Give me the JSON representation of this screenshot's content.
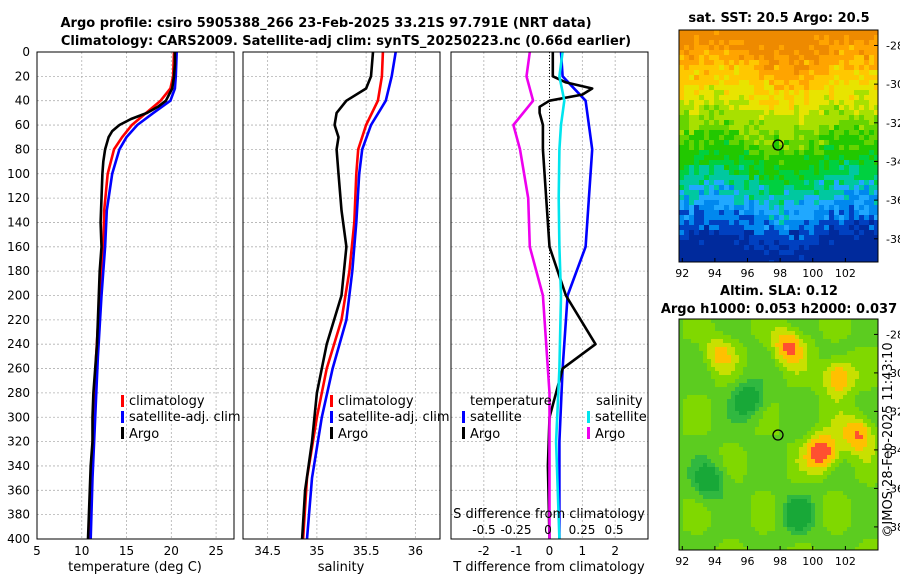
{
  "title_line1": "Argo profile: csiro 5905388_266 23-Feb-2025 33.21S 97.791E (NRT data)",
  "title_line2": "Climatology: CARS2009. Satellite-adj clim: synTS_20250223.nc (0.66d earlier)",
  "credit": "©IMOS 28-Feb-2025 11:43:10",
  "colors": {
    "climatology": "#ff0000",
    "satellite": "#0000ff",
    "argo": "#000000",
    "cyan": "#00e5ee",
    "magenta": "#ee00ee"
  },
  "chart_data": [
    {
      "type": "line",
      "name": "temperature",
      "xlabel": "temperature (deg C)",
      "xlim": [
        5,
        27
      ],
      "xticks": [
        5,
        10,
        15,
        20,
        25
      ],
      "ylim": [
        0,
        400
      ],
      "yticks": [
        0,
        20,
        40,
        60,
        80,
        100,
        120,
        140,
        160,
        180,
        200,
        220,
        240,
        260,
        280,
        300,
        320,
        340,
        360,
        380,
        400
      ],
      "legend": [
        "climatology",
        "satellite-adj. clim",
        "Argo"
      ],
      "series": [
        {
          "name": "climatology",
          "color": "#ff0000",
          "depth": [
            0,
            20,
            30,
            40,
            50,
            60,
            70,
            80,
            100,
            130,
            160,
            200,
            250,
            300,
            350,
            400
          ],
          "values": [
            20.3,
            20.2,
            19.9,
            18.8,
            17.2,
            15.6,
            14.5,
            13.6,
            12.9,
            12.5,
            12.4,
            12.0,
            11.6,
            11.3,
            11.1,
            10.9
          ]
        },
        {
          "name": "satellite-adj. clim",
          "color": "#0000ff",
          "depth": [
            0,
            20,
            30,
            40,
            50,
            60,
            70,
            80,
            100,
            130,
            160,
            200,
            250,
            300,
            350,
            400
          ],
          "values": [
            20.6,
            20.5,
            20.4,
            19.9,
            18.0,
            16.2,
            15.0,
            14.2,
            13.4,
            12.8,
            12.6,
            12.2,
            11.8,
            11.5,
            11.2,
            11.0
          ]
        },
        {
          "name": "Argo",
          "color": "#000000",
          "depth": [
            0,
            10,
            20,
            30,
            40,
            45,
            50,
            55,
            60,
            65,
            70,
            80,
            90,
            100,
            120,
            140,
            160,
            180,
            200,
            220,
            240,
            260,
            280,
            300,
            320,
            340,
            360,
            380,
            400
          ],
          "values": [
            20.4,
            20.4,
            20.3,
            20.1,
            19.4,
            18.5,
            17.3,
            15.5,
            14.2,
            13.4,
            13.0,
            12.6,
            12.4,
            12.3,
            12.2,
            12.1,
            12.2,
            12.0,
            11.9,
            11.8,
            11.7,
            11.5,
            11.3,
            11.2,
            11.2,
            11.0,
            10.9,
            10.8,
            10.7
          ]
        }
      ]
    },
    {
      "type": "line",
      "name": "salinity",
      "xlabel": "salinity",
      "xlim": [
        34.25,
        36.25
      ],
      "xticks": [
        34.5,
        35,
        35.5,
        36
      ],
      "ylim": [
        0,
        400
      ],
      "legend": [
        "climatology",
        "satellite-adj. clim",
        "Argo"
      ],
      "series": [
        {
          "name": "climatology",
          "color": "#ff0000",
          "depth": [
            0,
            20,
            40,
            60,
            80,
            100,
            140,
            180,
            220,
            260,
            300,
            350,
            400
          ],
          "values": [
            35.67,
            35.66,
            35.62,
            35.5,
            35.42,
            35.4,
            35.38,
            35.33,
            35.25,
            35.1,
            35.0,
            34.9,
            34.86
          ]
        },
        {
          "name": "satellite-adj. clim",
          "color": "#0000ff",
          "depth": [
            0,
            20,
            40,
            60,
            80,
            100,
            140,
            180,
            220,
            260,
            300,
            350,
            400
          ],
          "values": [
            35.8,
            35.76,
            35.7,
            35.55,
            35.46,
            35.43,
            35.4,
            35.36,
            35.3,
            35.16,
            35.05,
            34.95,
            34.9
          ]
        },
        {
          "name": "Argo",
          "color": "#000000",
          "depth": [
            0,
            20,
            30,
            40,
            50,
            60,
            70,
            80,
            100,
            130,
            160,
            200,
            240,
            280,
            320,
            360,
            400
          ],
          "values": [
            35.57,
            35.55,
            35.5,
            35.3,
            35.2,
            35.18,
            35.22,
            35.2,
            35.22,
            35.25,
            35.3,
            35.25,
            35.1,
            35.0,
            34.95,
            34.88,
            34.85
          ]
        }
      ]
    },
    {
      "type": "line",
      "name": "difference",
      "xlabel": "T difference from climatology",
      "xlim": [
        -3,
        3
      ],
      "xticks": [
        -2,
        -1,
        0,
        1,
        2
      ],
      "top_label": "S difference from climatology",
      "top_ticks": [
        "-0.5",
        "-0.25",
        "0",
        "0.25",
        "0.5"
      ],
      "ylim": [
        0,
        400
      ],
      "legend_left_title": "temperature",
      "legend_right_title": "salinity",
      "legend": [
        "satellite",
        "Argo",
        "satellite",
        "Argo"
      ],
      "series": [
        {
          "name": "temperature satellite",
          "color": "#0000ff",
          "depth": [
            0,
            20,
            40,
            60,
            80,
            120,
            160,
            200,
            260,
            320,
            400
          ],
          "values": [
            0.35,
            0.4,
            1.1,
            1.2,
            1.3,
            1.2,
            1.1,
            0.55,
            0.4,
            0.3,
            0.3
          ]
        },
        {
          "name": "temperature Argo",
          "color": "#000000",
          "depth": [
            0,
            20,
            25,
            30,
            35,
            40,
            45,
            50,
            60,
            80,
            120,
            160,
            200,
            240,
            260,
            300,
            340,
            400
          ],
          "values": [
            0.1,
            0.1,
            0.5,
            1.3,
            1.0,
            0.0,
            -0.3,
            -0.3,
            -0.2,
            -0.2,
            -0.1,
            0.0,
            0.5,
            1.4,
            0.4,
            0.0,
            -0.05,
            0.0
          ]
        },
        {
          "name": "salinity satellite",
          "color": "#00e5ee",
          "depth": [
            0,
            20,
            40,
            60,
            80,
            120,
            160,
            200,
            260,
            320,
            400
          ],
          "values": [
            0.4,
            0.3,
            0.45,
            0.35,
            0.3,
            0.28,
            0.3,
            0.35,
            0.3,
            0.2,
            0.3
          ]
        },
        {
          "name": "salinity Argo",
          "color": "#ee00ee",
          "depth": [
            0,
            20,
            40,
            60,
            80,
            120,
            160,
            200,
            240,
            280,
            320,
            360,
            400
          ],
          "values": [
            -0.6,
            -0.7,
            -0.5,
            -1.1,
            -0.9,
            -0.65,
            -0.6,
            -0.2,
            -0.1,
            0.0,
            0.0,
            0.0,
            0.0
          ]
        }
      ]
    }
  ],
  "maps": [
    {
      "title": "sat. SST: 20.5 Argo: 20.5",
      "xticks": [
        "92",
        "94",
        "96",
        "98",
        "100",
        "102"
      ],
      "yticks": [
        "-28",
        "-30",
        "-32",
        "-34",
        "-36",
        "-38"
      ],
      "marker_lon": 97.8,
      "marker_lat": -33.2
    },
    {
      "title1": "Altim. SLA: 0.12",
      "title2": "Argo h1000: 0.053 h2000: 0.037",
      "xticks": [
        "92",
        "94",
        "96",
        "98",
        "100",
        "102"
      ],
      "yticks": [
        "-28",
        "-30",
        "-32",
        "-34",
        "-36",
        "-38"
      ],
      "marker_lon": 97.8,
      "marker_lat": -33.2
    }
  ]
}
